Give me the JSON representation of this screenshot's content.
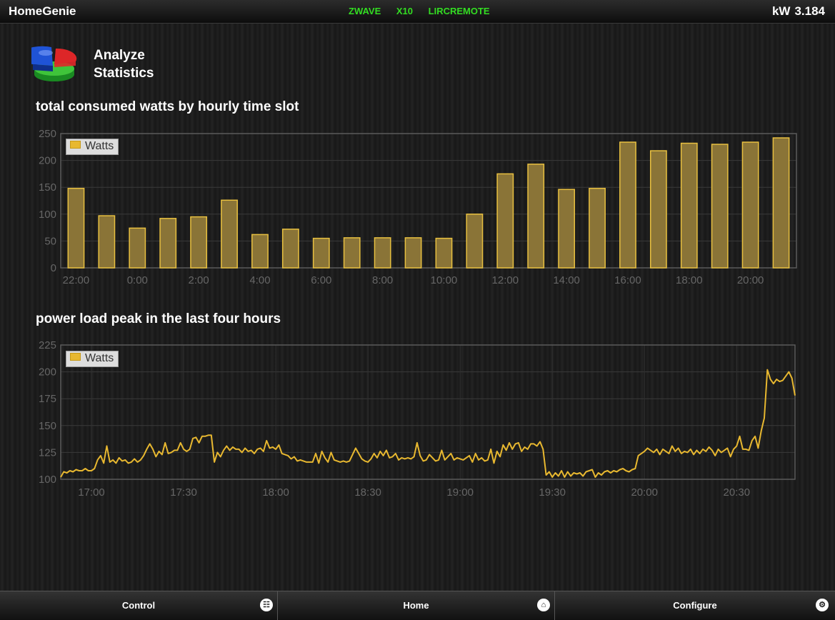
{
  "app": {
    "title": "HomeGenie",
    "power_label": "kW",
    "power_value": "3.184"
  },
  "interfaces": [
    "ZWAVE",
    "X10",
    "LIRCREMOTE"
  ],
  "header": {
    "title_line1": "Analyze",
    "title_line2": "Statistics",
    "icon": "pie-chart-icon"
  },
  "charts": {
    "hourly": {
      "title": "total consumed watts by hourly time slot",
      "legend": "Watts"
    },
    "peak": {
      "title": "power load peak in the last four hours",
      "legend": "Watts"
    }
  },
  "chart_data": [
    {
      "type": "bar",
      "title": "total consumed watts by hourly time slot",
      "series": [
        {
          "name": "Watts",
          "values": [
            148,
            97,
            74,
            92,
            95,
            126,
            62,
            72,
            55,
            56,
            56,
            56,
            55,
            100,
            175,
            193,
            146,
            148,
            234,
            218,
            232,
            230,
            234,
            242
          ]
        }
      ],
      "categories": [
        "22:00",
        "23:00",
        "0:00",
        "1:00",
        "2:00",
        "3:00",
        "4:00",
        "5:00",
        "6:00",
        "7:00",
        "8:00",
        "9:00",
        "10:00",
        "11:00",
        "12:00",
        "13:00",
        "14:00",
        "15:00",
        "16:00",
        "17:00",
        "18:00",
        "19:00",
        "20:00",
        "21:00"
      ],
      "x_tick_labels": [
        "22:00",
        "0:00",
        "2:00",
        "4:00",
        "6:00",
        "8:00",
        "10:00",
        "12:00",
        "14:00",
        "16:00",
        "18:00",
        "20:00"
      ],
      "y_tick_labels": [
        "250",
        "200",
        "150",
        "100",
        "50",
        "0"
      ],
      "ylim": [
        0,
        250
      ],
      "grid": true,
      "legend_position": "top-left",
      "color": "#e8b830"
    },
    {
      "type": "line",
      "title": "power load peak in the last four hours",
      "series": [
        {
          "name": "Watts",
          "points": [
            [
              "16:50",
              102
            ],
            [
              "16:51",
              107
            ],
            [
              "16:52",
              106
            ],
            [
              "16:53",
              108
            ],
            [
              "16:54",
              107
            ],
            [
              "16:55",
              109
            ],
            [
              "16:56",
              108
            ],
            [
              "16:57",
              108
            ],
            [
              "16:58",
              110
            ],
            [
              "16:59",
              108
            ],
            [
              "17:00",
              108
            ],
            [
              "17:01",
              110
            ],
            [
              "17:02",
              118
            ],
            [
              "17:03",
              122
            ],
            [
              "17:04",
              115
            ],
            [
              "17:05",
              131
            ],
            [
              "17:06",
              116
            ],
            [
              "17:07",
              118
            ],
            [
              "17:08",
              115
            ],
            [
              "17:09",
              120
            ],
            [
              "17:10",
              117
            ],
            [
              "17:11",
              118
            ],
            [
              "17:12",
              115
            ],
            [
              "17:13",
              116
            ],
            [
              "17:14",
              119
            ],
            [
              "17:15",
              116
            ],
            [
              "17:16",
              118
            ],
            [
              "17:17",
              122
            ],
            [
              "17:18",
              128
            ],
            [
              "17:19",
              133
            ],
            [
              "17:20",
              128
            ],
            [
              "17:21",
              121
            ],
            [
              "17:22",
              126
            ],
            [
              "17:23",
              123
            ],
            [
              "17:24",
              134
            ],
            [
              "17:25",
              124
            ],
            [
              "17:26",
              125
            ],
            [
              "17:27",
              127
            ],
            [
              "17:28",
              127
            ],
            [
              "17:29",
              134
            ],
            [
              "17:30",
              128
            ],
            [
              "17:31",
              126
            ],
            [
              "17:32",
              128
            ],
            [
              "17:33",
              138
            ],
            [
              "17:34",
              139
            ],
            [
              "17:35",
              134
            ],
            [
              "17:36",
              140
            ],
            [
              "17:37",
              140
            ],
            [
              "17:38",
              141
            ],
            [
              "17:39",
              141
            ],
            [
              "17:40",
              116
            ],
            [
              "17:41",
              125
            ],
            [
              "17:42",
              121
            ],
            [
              "17:43",
              127
            ],
            [
              "17:44",
              131
            ],
            [
              "17:45",
              127
            ],
            [
              "17:46",
              130
            ],
            [
              "17:47",
              128
            ],
            [
              "17:48",
              128
            ],
            [
              "17:49",
              125
            ],
            [
              "17:50",
              129
            ],
            [
              "17:51",
              126
            ],
            [
              "17:52",
              127
            ],
            [
              "17:53",
              124
            ],
            [
              "17:54",
              128
            ],
            [
              "17:55",
              129
            ],
            [
              "17:56",
              126
            ],
            [
              "17:57",
              136
            ],
            [
              "17:58",
              129
            ],
            [
              "17:59",
              130
            ],
            [
              "18:00",
              128
            ],
            [
              "18:01",
              132
            ],
            [
              "18:02",
              124
            ],
            [
              "18:03",
              123
            ],
            [
              "18:04",
              122
            ],
            [
              "18:05",
              119
            ],
            [
              "18:06",
              121
            ],
            [
              "18:07",
              117
            ],
            [
              "18:08",
              118
            ],
            [
              "18:09",
              117
            ],
            [
              "18:10",
              116
            ],
            [
              "18:11",
              116
            ],
            [
              "18:12",
              116
            ],
            [
              "18:13",
              124
            ],
            [
              "18:14",
              115
            ],
            [
              "18:15",
              126
            ],
            [
              "18:16",
              120
            ],
            [
              "18:17",
              116
            ],
            [
              "18:18",
              125
            ],
            [
              "18:19",
              118
            ],
            [
              "18:20",
              117
            ],
            [
              "18:21",
              116
            ],
            [
              "18:22",
              117
            ],
            [
              "18:23",
              116
            ],
            [
              "18:24",
              117
            ],
            [
              "18:25",
              123
            ],
            [
              "18:26",
              129
            ],
            [
              "18:27",
              124
            ],
            [
              "18:28",
              119
            ],
            [
              "18:29",
              117
            ],
            [
              "18:30",
              116
            ],
            [
              "18:31",
              119
            ],
            [
              "18:32",
              124
            ],
            [
              "18:33",
              120
            ],
            [
              "18:34",
              126
            ],
            [
              "18:35",
              122
            ],
            [
              "18:36",
              127
            ],
            [
              "18:37",
              120
            ],
            [
              "18:38",
              121
            ],
            [
              "18:39",
              124
            ],
            [
              "18:40",
              118
            ],
            [
              "18:41",
              120
            ],
            [
              "18:42",
              119
            ],
            [
              "18:43",
              120
            ],
            [
              "18:44",
              119
            ],
            [
              "18:45",
              121
            ],
            [
              "18:46",
              134
            ],
            [
              "18:47",
              122
            ],
            [
              "18:48",
              117
            ],
            [
              "18:49",
              118
            ],
            [
              "18:50",
              123
            ],
            [
              "18:51",
              120
            ],
            [
              "18:52",
              117
            ],
            [
              "18:53",
              118
            ],
            [
              "18:54",
              127
            ],
            [
              "18:55",
              118
            ],
            [
              "18:56",
              121
            ],
            [
              "18:57",
              124
            ],
            [
              "18:58",
              118
            ],
            [
              "18:59",
              120
            ],
            [
              "19:00",
              119
            ],
            [
              "19:01",
              118
            ],
            [
              "19:02",
              120
            ],
            [
              "19:03",
              122
            ],
            [
              "19:04",
              116
            ],
            [
              "19:05",
              124
            ],
            [
              "19:06",
              118
            ],
            [
              "19:07",
              120
            ],
            [
              "19:08",
              117
            ],
            [
              "19:09",
              118
            ],
            [
              "19:10",
              128
            ],
            [
              "19:11",
              115
            ],
            [
              "19:12",
              126
            ],
            [
              "19:13",
              121
            ],
            [
              "19:14",
              132
            ],
            [
              "19:15",
              127
            ],
            [
              "19:16",
              134
            ],
            [
              "19:17",
              128
            ],
            [
              "19:18",
              133
            ],
            [
              "19:19",
              134
            ],
            [
              "19:20",
              126
            ],
            [
              "19:21",
              130
            ],
            [
              "19:22",
              128
            ],
            [
              "19:23",
              133
            ],
            [
              "19:24",
              133
            ],
            [
              "19:25",
              131
            ],
            [
              "19:26",
              135
            ],
            [
              "19:27",
              128
            ],
            [
              "19:28",
              104
            ],
            [
              "19:29",
              107
            ],
            [
              "19:30",
              102
            ],
            [
              "19:31",
              106
            ],
            [
              "19:32",
              103
            ],
            [
              "19:33",
              108
            ],
            [
              "19:34",
              102
            ],
            [
              "19:35",
              107
            ],
            [
              "19:36",
              103
            ],
            [
              "19:37",
              106
            ],
            [
              "19:38",
              105
            ],
            [
              "19:39",
              106
            ],
            [
              "19:40",
              103
            ],
            [
              "19:41",
              107
            ],
            [
              "19:42",
              108
            ],
            [
              "19:43",
              109
            ],
            [
              "19:44",
              102
            ],
            [
              "19:45",
              106
            ],
            [
              "19:46",
              104
            ],
            [
              "19:47",
              107
            ],
            [
              "19:48",
              108
            ],
            [
              "19:49",
              106
            ],
            [
              "19:50",
              108
            ],
            [
              "19:51",
              107
            ],
            [
              "19:52",
              109
            ],
            [
              "19:53",
              110
            ],
            [
              "19:54",
              108
            ],
            [
              "19:55",
              107
            ],
            [
              "19:56",
              109
            ],
            [
              "19:57",
              110
            ],
            [
              "19:58",
              122
            ],
            [
              "19:59",
              124
            ],
            [
              "20:00",
              126
            ],
            [
              "20:01",
              129
            ],
            [
              "20:02",
              127
            ],
            [
              "20:03",
              125
            ],
            [
              "20:04",
              128
            ],
            [
              "20:05",
              123
            ],
            [
              "20:06",
              128
            ],
            [
              "20:07",
              126
            ],
            [
              "20:08",
              124
            ],
            [
              "20:09",
              131
            ],
            [
              "20:10",
              126
            ],
            [
              "20:11",
              129
            ],
            [
              "20:12",
              124
            ],
            [
              "20:13",
              126
            ],
            [
              "20:14",
              125
            ],
            [
              "20:15",
              128
            ],
            [
              "20:16",
              123
            ],
            [
              "20:17",
              127
            ],
            [
              "20:18",
              124
            ],
            [
              "20:19",
              128
            ],
            [
              "20:20",
              126
            ],
            [
              "20:21",
              130
            ],
            [
              "20:22",
              127
            ],
            [
              "20:23",
              122
            ],
            [
              "20:24",
              128
            ],
            [
              "20:25",
              125
            ],
            [
              "20:26",
              127
            ],
            [
              "20:27",
              129
            ],
            [
              "20:28",
              121
            ],
            [
              "20:29",
              128
            ],
            [
              "20:30",
              131
            ],
            [
              "20:31",
              140
            ],
            [
              "20:32",
              128
            ],
            [
              "20:33",
              128
            ],
            [
              "20:34",
              127
            ],
            [
              "20:35",
              136
            ],
            [
              "20:36",
              140
            ],
            [
              "20:37",
              129
            ],
            [
              "20:38",
              145
            ],
            [
              "20:39",
              157
            ],
            [
              "20:40",
              202
            ],
            [
              "20:41",
              193
            ],
            [
              "20:42",
              189
            ],
            [
              "20:43",
              193
            ],
            [
              "20:44",
              191
            ],
            [
              "20:45",
              192
            ],
            [
              "20:46",
              196
            ],
            [
              "20:47",
              200
            ],
            [
              "20:48",
              194
            ],
            [
              "20:49",
              178
            ]
          ]
        }
      ],
      "x_tick_labels": [
        "17:00",
        "17:30",
        "18:00",
        "18:30",
        "19:00",
        "19:30",
        "20:00",
        "20:30"
      ],
      "x_tick_values": [
        "17:00",
        "17:30",
        "18:00",
        "18:30",
        "19:00",
        "19:30",
        "20:00",
        "20:30"
      ],
      "y_tick_labels": [
        "225",
        "200",
        "175",
        "150",
        "125",
        "100"
      ],
      "ylim": [
        100,
        225
      ],
      "xlim": [
        "16:50",
        "20:49"
      ],
      "grid": true,
      "legend_position": "top-left",
      "color": "#e8b830"
    }
  ],
  "footer": {
    "control": {
      "label": "Control",
      "icon": "grid-icon"
    },
    "home": {
      "label": "Home",
      "icon": "home-icon"
    },
    "configure": {
      "label": "Configure",
      "icon": "gear-icon"
    }
  }
}
